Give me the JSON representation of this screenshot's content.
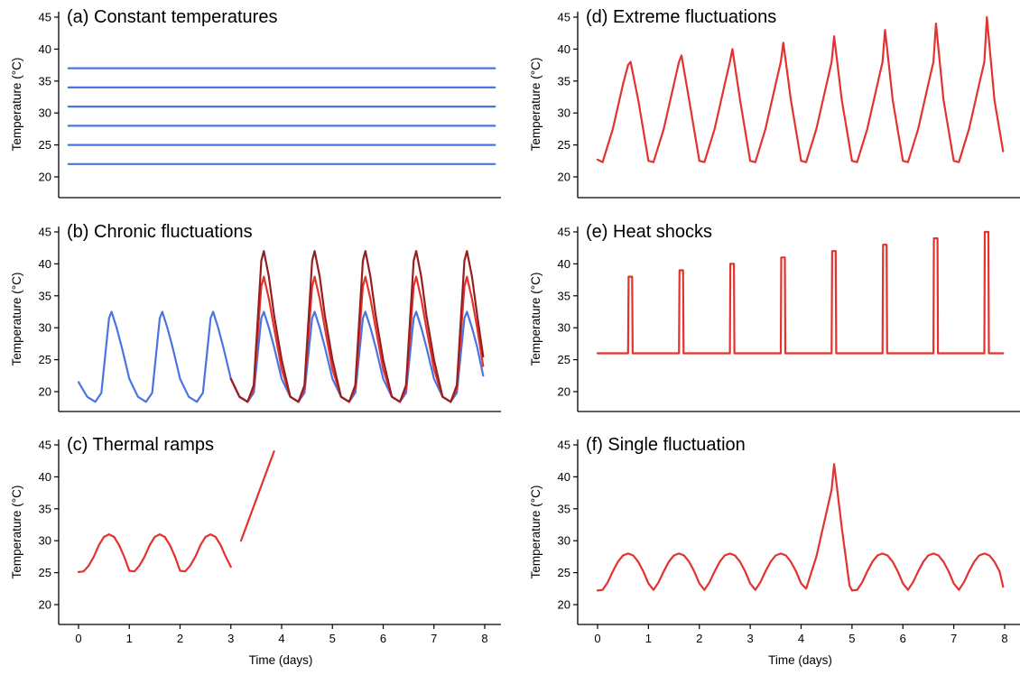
{
  "figure": {
    "xlabel": "Time (days)",
    "ylabel": "Temperature (°C)"
  },
  "colors": {
    "blue": "#4a74e0",
    "red": "#e4322f",
    "darkred": "#961e1e"
  },
  "chart_data": [
    {
      "id": "a",
      "type": "line",
      "title": "(a) Constant temperatures",
      "xlabel": "",
      "ylabel": "Temperature (°C)",
      "xlim": [
        0,
        8
      ],
      "ylim": [
        20,
        45
      ],
      "yticks": [
        20,
        25,
        30,
        35,
        40,
        45
      ],
      "xticks": [],
      "series": [
        {
          "color": "#4a74e0",
          "x": [
            -0.2,
            8.2
          ],
          "y": [
            37,
            37
          ]
        },
        {
          "color": "#4a74e0",
          "x": [
            -0.2,
            8.2
          ],
          "y": [
            34,
            34
          ]
        },
        {
          "color": "#4a74e0",
          "x": [
            -0.2,
            8.2
          ],
          "y": [
            31,
            31
          ]
        },
        {
          "color": "#4a74e0",
          "x": [
            -0.2,
            8.2
          ],
          "y": [
            28,
            28
          ]
        },
        {
          "color": "#4a74e0",
          "x": [
            -0.2,
            8.2
          ],
          "y": [
            25,
            25
          ]
        },
        {
          "color": "#4a74e0",
          "x": [
            -0.2,
            8.2
          ],
          "y": [
            22,
            22
          ]
        }
      ]
    },
    {
      "id": "b",
      "type": "line",
      "title": "(b) Chronic fluctuations",
      "xlabel": "",
      "ylabel": "Temperature (°C)",
      "xlim": [
        0,
        8
      ],
      "ylim": [
        20,
        45
      ],
      "yticks": [
        20,
        25,
        30,
        35,
        40,
        45
      ],
      "xticks": [],
      "series": [
        {
          "color": "#4a74e0",
          "x": [
            0,
            0.17,
            0.33,
            0.45,
            0.6,
            0.65,
            0.75,
            0.85,
            1.0,
            1.17,
            1.33,
            1.45,
            1.6,
            1.65,
            1.75,
            1.85,
            2.0,
            2.17,
            2.33,
            2.45,
            2.6,
            2.65,
            2.75,
            2.85,
            3.0,
            3.17,
            3.33,
            3.45,
            3.6,
            3.65,
            3.75,
            3.85,
            4.0,
            4.17,
            4.33,
            4.45,
            4.6,
            4.65,
            4.75,
            4.85,
            5.0,
            5.17,
            5.33,
            5.45,
            5.6,
            5.65,
            5.75,
            5.85,
            6.0,
            6.17,
            6.33,
            6.45,
            6.6,
            6.65,
            6.75,
            6.85,
            7.0,
            7.17,
            7.33,
            7.45,
            7.6,
            7.65,
            7.75,
            7.85,
            7.97
          ],
          "y": [
            21.5,
            19.2,
            18.4,
            19.8,
            31.5,
            32.5,
            30,
            27,
            22,
            19.2,
            18.4,
            19.8,
            31.5,
            32.5,
            30,
            27,
            22,
            19.2,
            18.4,
            19.8,
            31.5,
            32.5,
            30,
            27,
            22,
            19.2,
            18.4,
            19.8,
            31.5,
            32.5,
            30,
            27,
            22,
            19.2,
            18.4,
            19.8,
            31.5,
            32.5,
            30,
            27,
            22,
            19.2,
            18.4,
            19.8,
            31.5,
            32.5,
            30,
            27,
            22,
            19.2,
            18.4,
            19.8,
            31.5,
            32.5,
            30,
            27,
            22,
            19.2,
            18.4,
            19.8,
            31.5,
            32.5,
            30,
            27,
            22.5
          ]
        },
        {
          "color": "#e4322f",
          "x": [
            3.0,
            3.17,
            3.33,
            3.45,
            3.6,
            3.65,
            3.75,
            3.85,
            4.0,
            4.17,
            4.33,
            4.45,
            4.6,
            4.65,
            4.75,
            4.85,
            5.0,
            5.17,
            5.33,
            5.45,
            5.6,
            5.65,
            5.75,
            5.85,
            6.0,
            6.17,
            6.33,
            6.45,
            6.6,
            6.65,
            6.75,
            6.85,
            7.0,
            7.17,
            7.33,
            7.45,
            7.6,
            7.65,
            7.75,
            7.85,
            7.97
          ],
          "y": [
            22,
            19.2,
            18.4,
            20.5,
            36.5,
            38,
            34.5,
            30,
            23.5,
            19.2,
            18.4,
            20.5,
            36.5,
            38,
            34.5,
            30,
            23.5,
            19.2,
            18.4,
            20.5,
            36.5,
            38,
            34.5,
            30,
            23.5,
            19.2,
            18.4,
            20.5,
            36.5,
            38,
            34.5,
            30,
            23.5,
            19.2,
            18.4,
            20.5,
            36.5,
            38,
            34.5,
            30,
            24
          ]
        },
        {
          "color": "#961e1e",
          "x": [
            3.0,
            3.17,
            3.33,
            3.45,
            3.6,
            3.65,
            3.75,
            3.85,
            4.0,
            4.17,
            4.33,
            4.45,
            4.6,
            4.65,
            4.75,
            4.85,
            5.0,
            5.17,
            5.33,
            5.45,
            5.6,
            5.65,
            5.75,
            5.85,
            6.0,
            6.17,
            6.33,
            6.45,
            6.6,
            6.65,
            6.75,
            6.85,
            7.0,
            7.17,
            7.33,
            7.45,
            7.6,
            7.65,
            7.75,
            7.85,
            7.97
          ],
          "y": [
            22,
            19.2,
            18.4,
            21,
            40.5,
            42,
            38,
            32,
            25,
            19.2,
            18.4,
            21,
            40.5,
            42,
            38,
            32,
            25,
            19.2,
            18.4,
            21,
            40.5,
            42,
            38,
            32,
            25,
            19.2,
            18.4,
            21,
            40.5,
            42,
            38,
            32,
            25,
            19.2,
            18.4,
            21,
            40.5,
            42,
            38,
            32,
            25.5
          ]
        }
      ]
    },
    {
      "id": "c",
      "type": "line",
      "title": "(c) Thermal ramps",
      "xlabel": "Time (days)",
      "ylabel": "Temperature (°C)",
      "xlim": [
        0,
        8
      ],
      "ylim": [
        20,
        45
      ],
      "yticks": [
        20,
        25,
        30,
        35,
        40,
        45
      ],
      "xticks": [
        0,
        1,
        2,
        3,
        4,
        5,
        6,
        7,
        8
      ],
      "series": [
        {
          "color": "#e4322f",
          "x": [
            0,
            0.1,
            0.2,
            0.3,
            0.4,
            0.5,
            0.6,
            0.7,
            0.8,
            0.9,
            1.0,
            1.1,
            1.2,
            1.3,
            1.4,
            1.5,
            1.6,
            1.7,
            1.8,
            1.9,
            2.0,
            2.1,
            2.2,
            2.3,
            2.4,
            2.5,
            2.6,
            2.7,
            2.8,
            2.9,
            3.0
          ],
          "y": [
            25.1,
            25.2,
            26.1,
            27.5,
            29.3,
            30.6,
            31.0,
            30.6,
            29.3,
            27.5,
            25.3,
            25.2,
            26.1,
            27.5,
            29.3,
            30.6,
            31.0,
            30.6,
            29.3,
            27.5,
            25.3,
            25.2,
            26.1,
            27.5,
            29.3,
            30.6,
            31.0,
            30.6,
            29.3,
            27.5,
            25.9
          ]
        },
        {
          "color": "#e4322f",
          "x": [
            3.2,
            3.85
          ],
          "y": [
            30,
            44
          ]
        }
      ]
    },
    {
      "id": "d",
      "type": "line",
      "title": "(d) Extreme fluctuations",
      "xlabel": "",
      "ylabel": "Temperature (°C)",
      "xlim": [
        0,
        8
      ],
      "ylim": [
        20,
        45
      ],
      "yticks": [
        20,
        25,
        30,
        35,
        40,
        45
      ],
      "xticks": [],
      "series": [
        {
          "color": "#e4322f",
          "x": [
            0,
            0.1,
            0.3,
            0.5,
            0.6,
            0.65,
            0.8,
            1.0,
            1.1,
            1.3,
            1.5,
            1.6,
            1.65,
            1.8,
            2.0,
            2.1,
            2.3,
            2.5,
            2.6,
            2.65,
            2.8,
            3.0,
            3.1,
            3.3,
            3.5,
            3.6,
            3.65,
            3.8,
            4.0,
            4.1,
            4.3,
            4.5,
            4.6,
            4.65,
            4.8,
            5.0,
            5.1,
            5.3,
            5.5,
            5.6,
            5.65,
            5.8,
            6.0,
            6.1,
            6.3,
            6.5,
            6.6,
            6.65,
            6.8,
            7.0,
            7.1,
            7.3,
            7.5,
            7.6,
            7.65,
            7.8,
            7.97
          ],
          "y": [
            22.7,
            22.3,
            27.5,
            34.5,
            37.5,
            38,
            32,
            22.5,
            22.3,
            27.5,
            34.5,
            38,
            39,
            32,
            22.5,
            22.3,
            27.5,
            34.5,
            38,
            40,
            32,
            22.5,
            22.3,
            27.5,
            34.5,
            38,
            41,
            32,
            22.5,
            22.3,
            27.5,
            34.5,
            38,
            42,
            32,
            22.5,
            22.3,
            27.5,
            34.5,
            38,
            43,
            32,
            22.5,
            22.3,
            27.5,
            34.5,
            38,
            44,
            32,
            22.5,
            22.3,
            27.5,
            34.5,
            38,
            45,
            32,
            24
          ]
        }
      ]
    },
    {
      "id": "e",
      "type": "line",
      "title": "(e) Heat shocks",
      "xlabel": "",
      "ylabel": "Temperature (°C)",
      "xlim": [
        0,
        8
      ],
      "ylim": [
        20,
        45
      ],
      "yticks": [
        20,
        25,
        30,
        35,
        40,
        45
      ],
      "xticks": [],
      "series": [
        {
          "color": "#e4322f",
          "x": [
            0,
            0.6,
            0.61,
            0.68,
            0.69,
            1.6,
            1.61,
            1.68,
            1.69,
            2.6,
            2.61,
            2.68,
            2.69,
            3.6,
            3.61,
            3.68,
            3.69,
            4.6,
            4.61,
            4.68,
            4.69,
            5.6,
            5.61,
            5.68,
            5.69,
            6.6,
            6.61,
            6.68,
            6.69,
            7.6,
            7.61,
            7.68,
            7.69,
            7.97
          ],
          "y": [
            26,
            26,
            38,
            38,
            26,
            26,
            39,
            39,
            26,
            26,
            40,
            40,
            26,
            26,
            41,
            41,
            26,
            26,
            42,
            42,
            26,
            26,
            43,
            43,
            26,
            26,
            44,
            44,
            26,
            26,
            45,
            45,
            26,
            26
          ]
        }
      ]
    },
    {
      "id": "f",
      "type": "line",
      "title": "(f) Single fluctuation",
      "xlabel": "Time (days)",
      "ylabel": "Temperature (°C)",
      "xlim": [
        0,
        8
      ],
      "ylim": [
        20,
        45
      ],
      "yticks": [
        20,
        25,
        30,
        35,
        40,
        45
      ],
      "xticks": [
        0,
        1,
        2,
        3,
        4,
        5,
        6,
        7,
        8
      ],
      "series": [
        {
          "color": "#e4322f",
          "x": [
            0,
            0.1,
            0.2,
            0.3,
            0.4,
            0.5,
            0.6,
            0.7,
            0.8,
            0.9,
            1.0,
            1.1,
            1.2,
            1.3,
            1.4,
            1.5,
            1.6,
            1.7,
            1.8,
            1.9,
            2.0,
            2.1,
            2.2,
            2.3,
            2.4,
            2.5,
            2.6,
            2.7,
            2.8,
            2.9,
            3.0,
            3.1,
            3.2,
            3.3,
            3.4,
            3.5,
            3.6,
            3.7,
            3.8,
            3.9,
            4.0,
            4.1,
            4.3,
            4.5,
            4.6,
            4.65,
            4.8,
            4.95,
            5.0,
            5.1,
            5.2,
            5.3,
            5.4,
            5.5,
            5.6,
            5.7,
            5.8,
            5.9,
            6.0,
            6.1,
            6.2,
            6.3,
            6.4,
            6.5,
            6.6,
            6.7,
            6.8,
            6.9,
            7.0,
            7.1,
            7.2,
            7.3,
            7.4,
            7.5,
            7.6,
            7.7,
            7.8,
            7.9,
            7.97
          ],
          "y": [
            22.2,
            22.3,
            23.5,
            25.2,
            26.7,
            27.7,
            28.0,
            27.7,
            26.7,
            25.2,
            23.3,
            22.3,
            23.5,
            25.2,
            26.7,
            27.7,
            28.0,
            27.7,
            26.7,
            25.2,
            23.3,
            22.3,
            23.5,
            25.2,
            26.7,
            27.7,
            28.0,
            27.7,
            26.7,
            25.2,
            23.3,
            22.3,
            23.5,
            25.2,
            26.7,
            27.7,
            28.0,
            27.7,
            26.7,
            25.2,
            23.3,
            22.5,
            27.5,
            34.5,
            38,
            42,
            32,
            23,
            22.2,
            22.3,
            23.5,
            25.2,
            26.7,
            27.7,
            28.0,
            27.7,
            26.7,
            25.2,
            23.3,
            22.3,
            23.5,
            25.2,
            26.7,
            27.7,
            28.0,
            27.7,
            26.7,
            25.2,
            23.3,
            22.3,
            23.5,
            25.2,
            26.7,
            27.7,
            28.0,
            27.7,
            26.7,
            25.2,
            22.8
          ]
        }
      ]
    }
  ]
}
